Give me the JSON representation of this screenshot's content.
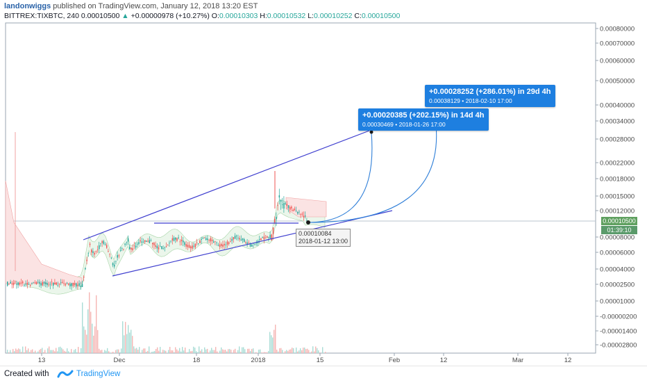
{
  "header": {
    "author": "landonwiggs",
    "published_text": " published on TradingView.com, January 12, 2018 13:20 EST",
    "symbol": "BITTREX:TIXBTC, 240",
    "last": "0.00010500",
    "change_triangle": "▲",
    "change": "+0.00000978 (+10.27%)",
    "o_label": "O:",
    "o_value": "0.00010303",
    "h_label": "H:",
    "h_value": "0.00010532",
    "l_label": "L:",
    "l_value": "0.00010252",
    "c_label": "C:",
    "c_value": "0.00010500"
  },
  "chart_data": {
    "type": "candlestick",
    "y_axis_ticks": [
      "0.00080000",
      "0.00070000",
      "0.00060000",
      "0.00050000",
      "0.00040000",
      "0.00034000",
      "0.00028000",
      "0.00022000",
      "0.00018000",
      "0.00015000",
      "0.00012000",
      "0.00008000",
      "0.00006000",
      "0.00004000",
      "0.00002500",
      "0.00001000",
      "-0.00000200",
      "-0.00001400",
      "-0.00002800"
    ],
    "x_axis_ticks": [
      "13",
      "Dec",
      "18",
      "2018",
      "15",
      "Feb",
      "12",
      "Mar",
      "12"
    ],
    "current_price_label": "0.00010500",
    "countdown_label": "01:39:10",
    "annotations": [
      {
        "line1": "+0.00020385 (+202.15%) in 14d 4h",
        "line2": "0.00030469  •  2018-01-26  17:00"
      },
      {
        "line1": "+0.00028252 (+286.01%) in 29d 4h",
        "line2": "0.00038129  •  2018-02-10  17:00"
      }
    ],
    "point_label": {
      "value": "0.00010084",
      "date": "2018-01-12 13:00"
    }
  },
  "footer": {
    "created_with": "Created with",
    "brand": "TradingView"
  },
  "colors": {
    "up": "#26a69a",
    "down": "#ef5350",
    "trendline": "#3f3fcf",
    "projection": "#2f7fd8",
    "callout_bg": "#1e7fe0",
    "price_badge": "#5fa05f"
  }
}
